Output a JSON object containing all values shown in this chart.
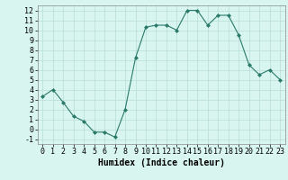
{
  "x": [
    0,
    1,
    2,
    3,
    4,
    5,
    6,
    7,
    8,
    9,
    10,
    11,
    12,
    13,
    14,
    15,
    16,
    17,
    18,
    19,
    20,
    21,
    22,
    23
  ],
  "y": [
    3.3,
    4.0,
    2.7,
    1.3,
    0.8,
    -0.3,
    -0.3,
    -0.8,
    2.0,
    7.2,
    10.3,
    10.5,
    10.5,
    10.0,
    12.0,
    12.0,
    10.5,
    11.5,
    11.5,
    9.5,
    6.5,
    5.5,
    6.0,
    5.0
  ],
  "line_color": "#2a7a6a",
  "marker": "D",
  "marker_size": 2,
  "bg_color": "#d8f5f0",
  "grid_color": "#b8ddd8",
  "xlabel": "Humidex (Indice chaleur)",
  "xlim": [
    -0.5,
    23.5
  ],
  "ylim": [
    -1.5,
    12.5
  ],
  "yticks": [
    -1,
    0,
    1,
    2,
    3,
    4,
    5,
    6,
    7,
    8,
    9,
    10,
    11,
    12
  ],
  "xticks": [
    0,
    1,
    2,
    3,
    4,
    5,
    6,
    7,
    8,
    9,
    10,
    11,
    12,
    13,
    14,
    15,
    16,
    17,
    18,
    19,
    20,
    21,
    22,
    23
  ],
  "xlabel_fontsize": 7,
  "tick_fontsize": 6
}
